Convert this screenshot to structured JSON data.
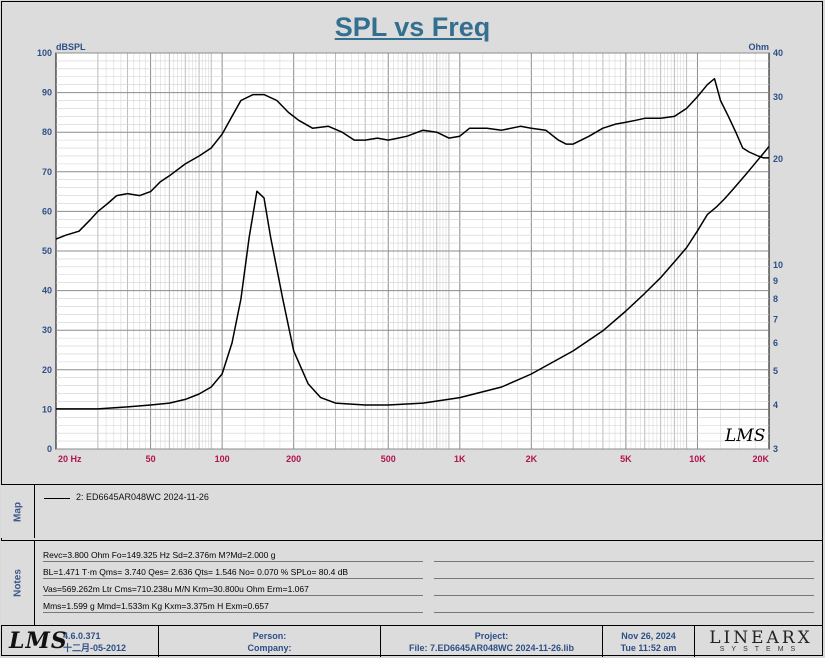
{
  "title": "SPL vs Freq",
  "axis_left_unit": "dBSPL",
  "axis_right_unit": "Ohm",
  "watermark": "LMS",
  "chart_data": {
    "type": "line",
    "title": "SPL vs Freq",
    "xscale": "log",
    "xlim": [
      20,
      20000
    ],
    "ylim": [
      0,
      100
    ],
    "y2lim": [
      3,
      40
    ],
    "y2scale": "log",
    "x_ticks": [
      {
        "v": 20,
        "label": "20  Hz"
      },
      {
        "v": 50,
        "label": "50"
      },
      {
        "v": 100,
        "label": "100"
      },
      {
        "v": 200,
        "label": "200"
      },
      {
        "v": 500,
        "label": "500"
      },
      {
        "v": 1000,
        "label": "1K"
      },
      {
        "v": 2000,
        "label": "2K"
      },
      {
        "v": 5000,
        "label": "5K"
      },
      {
        "v": 10000,
        "label": "10K"
      },
      {
        "v": 20000,
        "label": "20K"
      }
    ],
    "y_ticks": [
      0,
      10,
      20,
      30,
      40,
      50,
      60,
      70,
      80,
      90,
      100
    ],
    "y2_ticks": [
      3,
      4,
      5,
      6,
      7,
      8,
      9,
      10,
      20,
      30,
      40
    ],
    "grid": true,
    "series": [
      {
        "axis": "left",
        "x": [
          20,
          22,
          25,
          28,
          30,
          33,
          36,
          40,
          45,
          50,
          55,
          60,
          70,
          80,
          90,
          100,
          110,
          120,
          135,
          150,
          170,
          190,
          210,
          240,
          280,
          320,
          360,
          400,
          450,
          500,
          550,
          600,
          700,
          800,
          900,
          1000,
          1100,
          1300,
          1500,
          1800,
          2000,
          2300,
          2600,
          2800,
          3000,
          3500,
          4000,
          4500,
          5000,
          5500,
          6000,
          7000,
          8000,
          9000,
          10000,
          11000,
          11800,
          12500,
          13500,
          14500,
          15500,
          16500,
          18000,
          19000,
          20000
        ],
        "values": [
          53,
          54,
          55,
          58,
          60,
          62,
          64,
          64.5,
          64,
          65,
          67.5,
          69,
          72,
          74,
          76,
          79.5,
          84,
          88,
          89.5,
          89.5,
          88,
          85,
          83,
          81,
          81.5,
          80,
          78,
          78,
          78.5,
          78,
          78.5,
          79,
          80.5,
          80,
          78.5,
          79,
          81,
          81,
          80.5,
          81.5,
          81,
          80.5,
          78,
          77,
          77,
          79,
          81,
          82,
          82.5,
          83,
          83.5,
          83.5,
          84,
          86,
          89,
          92,
          93.5,
          88,
          84,
          80,
          76,
          75,
          74,
          73.5,
          73.5
        ]
      },
      {
        "axis": "right",
        "x": [
          20,
          30,
          40,
          50,
          60,
          70,
          80,
          90,
          100,
          110,
          120,
          130,
          140,
          150,
          160,
          180,
          200,
          230,
          260,
          300,
          400,
          500,
          700,
          1000,
          1500,
          2000,
          3000,
          4000,
          5000,
          6000,
          7000,
          8000,
          9000,
          10000,
          11000,
          12000,
          13000,
          14000,
          15000,
          16000,
          17000,
          18000,
          19000,
          20000
        ],
        "values": [
          3.9,
          3.9,
          3.95,
          4.0,
          4.05,
          4.15,
          4.3,
          4.5,
          4.9,
          6.0,
          8.0,
          12.0,
          16.2,
          15.5,
          12.0,
          8.0,
          5.7,
          4.6,
          4.2,
          4.05,
          4.0,
          4.0,
          4.05,
          4.2,
          4.5,
          4.9,
          5.7,
          6.5,
          7.4,
          8.3,
          9.2,
          10.2,
          11.2,
          12.5,
          13.9,
          14.6,
          15.4,
          16.3,
          17.2,
          18.1,
          19.0,
          19.9,
          20.8,
          21.7
        ]
      }
    ]
  },
  "map": {
    "label": "Map",
    "legend": "2: ED6645AR048WC 2024-11-26"
  },
  "notes": {
    "label": "Notes",
    "lines": [
      "Revc=3.800 Ohm  Fo=149.325 Hz  Sd=2.376m M?Md=2.000 g",
      "BL=1.471 T·m  Qms= 3.740  Qes= 2.636  Qts= 1.546  No= 0.070 %  SPLo= 80.4 dB",
      "Vas=569.262m Ltr  Cms=710.238u M/N  Krm=30.800u Ohm  Erm=1.067",
      "Mms=1.599 g  Mmd=1.533m Kg  Kxm=3.375m H  Exm=0.657"
    ]
  },
  "footer": {
    "logo": "LMS",
    "version": "4.6.0.371",
    "date_build": "十二月-05-2012",
    "person_label": "Person:",
    "company_label": "Company:",
    "project_label": "Project:",
    "file_label": "File: 7.ED6645AR048WC 2024-11-26.lib",
    "date": "Nov 26, 2024",
    "time": "Tue 11:52 am",
    "brand_big": "LINEARX",
    "brand_small": "SYSTEMS"
  }
}
